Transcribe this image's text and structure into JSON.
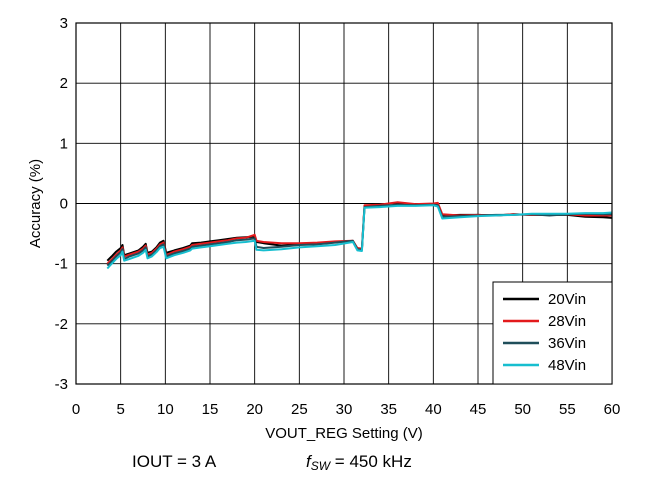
{
  "chart_data": {
    "type": "line",
    "title": "",
    "xlabel": "VOUT_REG Setting (V)",
    "ylabel": "Accuracy (%)",
    "xlim": [
      0,
      60
    ],
    "ylim": [
      -3,
      3
    ],
    "x_ticks": [
      0,
      5,
      10,
      15,
      20,
      25,
      30,
      35,
      40,
      45,
      50,
      55,
      60
    ],
    "y_ticks": [
      3,
      2,
      1,
      0,
      -1,
      -2,
      -3
    ],
    "grid": true,
    "legend_position": "bottom-right",
    "series": [
      {
        "name": "20Vin",
        "color": "#000000",
        "points": [
          [
            3.5,
            -0.95
          ],
          [
            4.0,
            -0.88
          ],
          [
            4.5,
            -0.8
          ],
          [
            5.0,
            -0.74
          ],
          [
            5.2,
            -0.69
          ],
          [
            5.4,
            -0.86
          ],
          [
            6.0,
            -0.83
          ],
          [
            7.0,
            -0.78
          ],
          [
            7.5,
            -0.72
          ],
          [
            7.8,
            -0.67
          ],
          [
            8.0,
            -0.82
          ],
          [
            8.5,
            -0.8
          ],
          [
            9.0,
            -0.73
          ],
          [
            9.4,
            -0.65
          ],
          [
            9.8,
            -0.62
          ],
          [
            10.1,
            -0.82
          ],
          [
            11.0,
            -0.78
          ],
          [
            12.0,
            -0.74
          ],
          [
            12.8,
            -0.7
          ],
          [
            13.0,
            -0.66
          ],
          [
            14.0,
            -0.65
          ],
          [
            15.0,
            -0.63
          ],
          [
            16.0,
            -0.61
          ],
          [
            17.0,
            -0.59
          ],
          [
            18.0,
            -0.57
          ],
          [
            19.0,
            -0.56
          ],
          [
            20.0,
            -0.55
          ],
          [
            20.2,
            -0.64
          ],
          [
            21.0,
            -0.66
          ],
          [
            23.0,
            -0.7
          ],
          [
            25.0,
            -0.67
          ],
          [
            27.0,
            -0.66
          ],
          [
            29.0,
            -0.64
          ],
          [
            31.0,
            -0.63
          ],
          [
            31.5,
            -0.75
          ],
          [
            32.0,
            -0.76
          ],
          [
            32.3,
            -0.05
          ],
          [
            34.0,
            -0.04
          ],
          [
            36.0,
            -0.03
          ],
          [
            38.0,
            -0.02
          ],
          [
            40.0,
            -0.01
          ],
          [
            40.5,
            -0.01
          ],
          [
            41.0,
            -0.2
          ],
          [
            43.0,
            -0.19
          ],
          [
            45.0,
            -0.19
          ],
          [
            47.0,
            -0.2
          ],
          [
            49.0,
            -0.18
          ],
          [
            51.0,
            -0.19
          ],
          [
            53.0,
            -0.19
          ],
          [
            55.0,
            -0.19
          ],
          [
            57.0,
            -0.22
          ],
          [
            59.0,
            -0.23
          ],
          [
            60.0,
            -0.24
          ]
        ]
      },
      {
        "name": "28Vin",
        "color": "#e31a1c",
        "points": [
          [
            3.5,
            -1.0
          ],
          [
            4.0,
            -0.93
          ],
          [
            4.5,
            -0.85
          ],
          [
            5.0,
            -0.78
          ],
          [
            5.2,
            -0.73
          ],
          [
            5.4,
            -0.88
          ],
          [
            6.0,
            -0.85
          ],
          [
            7.0,
            -0.8
          ],
          [
            7.5,
            -0.75
          ],
          [
            7.8,
            -0.7
          ],
          [
            8.0,
            -0.85
          ],
          [
            8.5,
            -0.82
          ],
          [
            9.0,
            -0.75
          ],
          [
            9.4,
            -0.68
          ],
          [
            9.8,
            -0.65
          ],
          [
            10.1,
            -0.86
          ],
          [
            11.0,
            -0.8
          ],
          [
            12.0,
            -0.76
          ],
          [
            12.8,
            -0.72
          ],
          [
            13.0,
            -0.69
          ],
          [
            14.0,
            -0.67
          ],
          [
            15.0,
            -0.65
          ],
          [
            16.0,
            -0.63
          ],
          [
            17.0,
            -0.61
          ],
          [
            18.0,
            -0.58
          ],
          [
            19.0,
            -0.57
          ],
          [
            20.0,
            -0.52
          ],
          [
            20.2,
            -0.62
          ],
          [
            21.0,
            -0.64
          ],
          [
            23.0,
            -0.66
          ],
          [
            25.0,
            -0.66
          ],
          [
            27.0,
            -0.65
          ],
          [
            29.0,
            -0.63
          ],
          [
            31.0,
            -0.62
          ],
          [
            31.5,
            -0.74
          ],
          [
            32.0,
            -0.75
          ],
          [
            32.3,
            -0.03
          ],
          [
            34.0,
            -0.02
          ],
          [
            36.0,
            0.02
          ],
          [
            38.0,
            -0.01
          ],
          [
            40.0,
            0.0
          ],
          [
            40.5,
            0.01
          ],
          [
            41.0,
            -0.18
          ],
          [
            43.0,
            -0.2
          ],
          [
            45.0,
            -0.19
          ],
          [
            47.0,
            -0.2
          ],
          [
            49.0,
            -0.18
          ],
          [
            51.0,
            -0.19
          ],
          [
            53.0,
            -0.19
          ],
          [
            55.0,
            -0.18
          ],
          [
            57.0,
            -0.2
          ],
          [
            59.0,
            -0.2
          ],
          [
            60.0,
            -0.2
          ]
        ]
      },
      {
        "name": "36Vin",
        "color": "#1f4e5a",
        "points": [
          [
            3.5,
            -1.03
          ],
          [
            4.0,
            -0.96
          ],
          [
            4.5,
            -0.88
          ],
          [
            5.0,
            -0.81
          ],
          [
            5.2,
            -0.76
          ],
          [
            5.4,
            -0.92
          ],
          [
            6.0,
            -0.88
          ],
          [
            7.0,
            -0.83
          ],
          [
            7.5,
            -0.78
          ],
          [
            7.8,
            -0.73
          ],
          [
            8.0,
            -0.88
          ],
          [
            8.5,
            -0.85
          ],
          [
            9.0,
            -0.78
          ],
          [
            9.4,
            -0.71
          ],
          [
            9.8,
            -0.68
          ],
          [
            10.1,
            -0.88
          ],
          [
            11.0,
            -0.83
          ],
          [
            12.0,
            -0.79
          ],
          [
            12.8,
            -0.75
          ],
          [
            13.0,
            -0.72
          ],
          [
            14.0,
            -0.7
          ],
          [
            15.0,
            -0.68
          ],
          [
            16.0,
            -0.66
          ],
          [
            17.0,
            -0.64
          ],
          [
            18.0,
            -0.61
          ],
          [
            19.0,
            -0.6
          ],
          [
            20.0,
            -0.58
          ],
          [
            20.2,
            -0.72
          ],
          [
            21.0,
            -0.74
          ],
          [
            23.0,
            -0.72
          ],
          [
            25.0,
            -0.69
          ],
          [
            27.0,
            -0.68
          ],
          [
            29.0,
            -0.65
          ],
          [
            31.0,
            -0.62
          ],
          [
            31.5,
            -0.76
          ],
          [
            32.0,
            -0.77
          ],
          [
            32.3,
            -0.06
          ],
          [
            34.0,
            -0.04
          ],
          [
            36.0,
            -0.02
          ],
          [
            38.0,
            -0.03
          ],
          [
            40.0,
            -0.02
          ],
          [
            40.5,
            -0.03
          ],
          [
            41.0,
            -0.22
          ],
          [
            43.0,
            -0.21
          ],
          [
            45.0,
            -0.2
          ],
          [
            47.0,
            -0.19
          ],
          [
            49.0,
            -0.19
          ],
          [
            51.0,
            -0.18
          ],
          [
            53.0,
            -0.2
          ],
          [
            55.0,
            -0.18
          ],
          [
            57.0,
            -0.17
          ],
          [
            59.0,
            -0.18
          ],
          [
            60.0,
            -0.18
          ]
        ]
      },
      {
        "name": "48Vin",
        "color": "#17becf",
        "points": [
          [
            3.5,
            -1.08
          ],
          [
            4.0,
            -1.0
          ],
          [
            4.5,
            -0.92
          ],
          [
            5.0,
            -0.86
          ],
          [
            5.2,
            -0.8
          ],
          [
            5.4,
            -0.95
          ],
          [
            6.0,
            -0.92
          ],
          [
            7.0,
            -0.87
          ],
          [
            7.5,
            -0.82
          ],
          [
            7.8,
            -0.77
          ],
          [
            8.0,
            -0.91
          ],
          [
            8.5,
            -0.88
          ],
          [
            9.0,
            -0.81
          ],
          [
            9.4,
            -0.74
          ],
          [
            9.8,
            -0.72
          ],
          [
            10.1,
            -0.91
          ],
          [
            11.0,
            -0.86
          ],
          [
            12.0,
            -0.82
          ],
          [
            12.8,
            -0.78
          ],
          [
            13.0,
            -0.75
          ],
          [
            14.0,
            -0.73
          ],
          [
            15.0,
            -0.71
          ],
          [
            16.0,
            -0.69
          ],
          [
            17.0,
            -0.67
          ],
          [
            18.0,
            -0.65
          ],
          [
            19.0,
            -0.64
          ],
          [
            20.0,
            -0.62
          ],
          [
            20.2,
            -0.77
          ],
          [
            21.0,
            -0.78
          ],
          [
            23.0,
            -0.76
          ],
          [
            25.0,
            -0.73
          ],
          [
            27.0,
            -0.71
          ],
          [
            29.0,
            -0.69
          ],
          [
            31.0,
            -0.64
          ],
          [
            31.5,
            -0.78
          ],
          [
            32.0,
            -0.79
          ],
          [
            32.3,
            -0.07
          ],
          [
            34.0,
            -0.06
          ],
          [
            36.0,
            -0.04
          ],
          [
            38.0,
            -0.04
          ],
          [
            40.0,
            -0.03
          ],
          [
            40.5,
            -0.05
          ],
          [
            41.0,
            -0.25
          ],
          [
            43.0,
            -0.23
          ],
          [
            45.0,
            -0.21
          ],
          [
            47.0,
            -0.2
          ],
          [
            49.0,
            -0.19
          ],
          [
            51.0,
            -0.17
          ],
          [
            53.0,
            -0.17
          ],
          [
            55.0,
            -0.17
          ],
          [
            57.0,
            -0.16
          ],
          [
            59.0,
            -0.16
          ],
          [
            60.0,
            -0.15
          ]
        ]
      }
    ]
  },
  "caption": {
    "iout": "IOUT = 3 A",
    "fsw_symbol": "f",
    "fsw_subscript": "SW",
    "fsw_value": " = 450 kHz"
  }
}
